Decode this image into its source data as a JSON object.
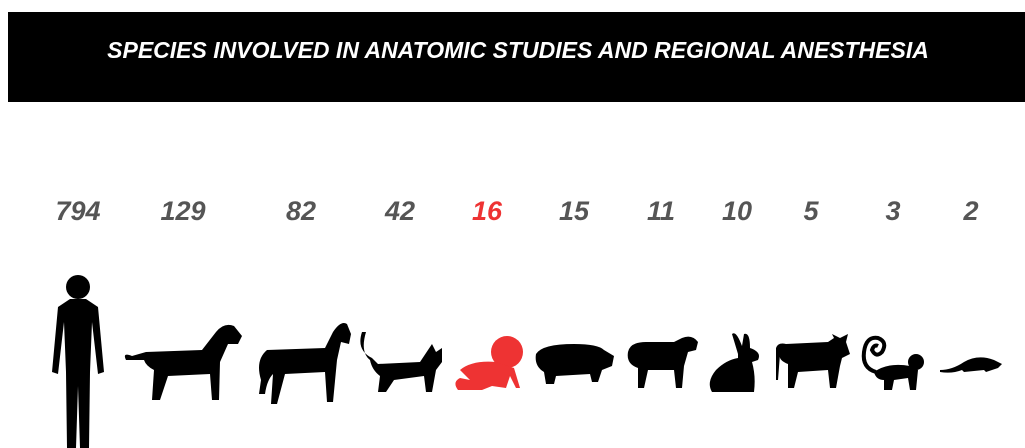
{
  "header": {
    "title": "SPECIES INVOLVED IN ANATOMIC STUDIES AND REGIONAL ANESTHESIA"
  },
  "items": [
    {
      "count": 794,
      "color": "#555555"
    },
    {
      "count": 129,
      "color": "#555555"
    },
    {
      "count": 82,
      "color": "#555555"
    },
    {
      "count": 42,
      "color": "#555555"
    },
    {
      "count": 16,
      "color": "#ee3333"
    },
    {
      "count": 15,
      "color": "#555555"
    },
    {
      "count": 11,
      "color": "#555555"
    },
    {
      "count": 10,
      "color": "#555555"
    },
    {
      "count": 5,
      "color": "#555555"
    },
    {
      "count": 3,
      "color": "#555555"
    },
    {
      "count": 2,
      "color": "#555555"
    }
  ]
}
